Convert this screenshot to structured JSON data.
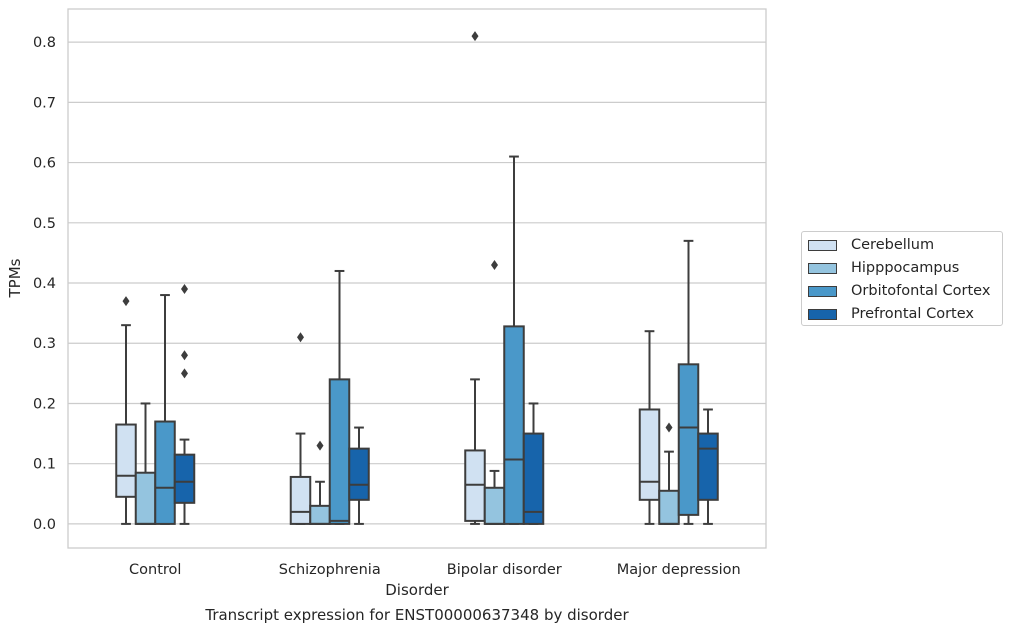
{
  "caption": "Transcript expression for ENST00000637348 by disorder",
  "chart_data": {
    "type": "boxplot",
    "xlabel": "Disorder",
    "ylabel": "TPMs",
    "ylim": [
      -0.04,
      0.855
    ],
    "yticks": [
      0.0,
      0.1,
      0.2,
      0.3,
      0.4,
      0.5,
      0.6,
      0.7,
      0.8
    ],
    "ytick_labels": [
      "0.0",
      "0.1",
      "0.2",
      "0.3",
      "0.4",
      "0.5",
      "0.6",
      "0.7",
      "0.8"
    ],
    "grid": "horizontal",
    "legend_position": "right",
    "categories": [
      "Control",
      "Schizophrenia",
      "Bipolar disorder",
      "Major depression"
    ],
    "series": [
      {
        "name": "Cerebellum",
        "color": "#d0e1f2",
        "boxes": [
          {
            "q1": 0.045,
            "median": 0.08,
            "q3": 0.165,
            "whisker_low": 0.0,
            "whisker_high": 0.33,
            "outliers": [
              0.37
            ]
          },
          {
            "q1": 0.0,
            "median": 0.02,
            "q3": 0.078,
            "whisker_low": 0.0,
            "whisker_high": 0.15,
            "outliers": [
              0.31
            ]
          },
          {
            "q1": 0.005,
            "median": 0.065,
            "q3": 0.122,
            "whisker_low": 0.0,
            "whisker_high": 0.24,
            "outliers": [
              0.81
            ]
          },
          {
            "q1": 0.04,
            "median": 0.07,
            "q3": 0.19,
            "whisker_low": 0.0,
            "whisker_high": 0.32,
            "outliers": []
          }
        ]
      },
      {
        "name": "Hipppocampus",
        "color": "#94c4df",
        "boxes": [
          {
            "q1": 0.0,
            "median": 0.0,
            "q3": 0.085,
            "whisker_low": 0.0,
            "whisker_high": 0.2,
            "outliers": []
          },
          {
            "q1": 0.0,
            "median": 0.0,
            "q3": 0.03,
            "whisker_low": 0.0,
            "whisker_high": 0.07,
            "outliers": [
              0.13
            ]
          },
          {
            "q1": 0.0,
            "median": 0.0,
            "q3": 0.06,
            "whisker_low": 0.0,
            "whisker_high": 0.088,
            "outliers": [
              0.43
            ]
          },
          {
            "q1": 0.0,
            "median": 0.0,
            "q3": 0.055,
            "whisker_low": 0.0,
            "whisker_high": 0.12,
            "outliers": [
              0.16
            ]
          }
        ]
      },
      {
        "name": "Orbitofontal Cortex",
        "color": "#4a98c9",
        "boxes": [
          {
            "q1": 0.0,
            "median": 0.06,
            "q3": 0.17,
            "whisker_low": 0.0,
            "whisker_high": 0.38,
            "outliers": []
          },
          {
            "q1": 0.0,
            "median": 0.005,
            "q3": 0.24,
            "whisker_low": 0.0,
            "whisker_high": 0.42,
            "outliers": []
          },
          {
            "q1": 0.0,
            "median": 0.107,
            "q3": 0.328,
            "whisker_low": 0.0,
            "whisker_high": 0.61,
            "outliers": []
          },
          {
            "q1": 0.015,
            "median": 0.16,
            "q3": 0.265,
            "whisker_low": 0.0,
            "whisker_high": 0.47,
            "outliers": []
          }
        ]
      },
      {
        "name": "Prefrontal Cortex",
        "color": "#1764ab",
        "boxes": [
          {
            "q1": 0.035,
            "median": 0.07,
            "q3": 0.115,
            "whisker_low": 0.0,
            "whisker_high": 0.14,
            "outliers": [
              0.25,
              0.28,
              0.39
            ]
          },
          {
            "q1": 0.04,
            "median": 0.065,
            "q3": 0.125,
            "whisker_low": 0.0,
            "whisker_high": 0.16,
            "outliers": []
          },
          {
            "q1": 0.0,
            "median": 0.02,
            "q3": 0.15,
            "whisker_low": 0.0,
            "whisker_high": 0.2,
            "outliers": []
          },
          {
            "q1": 0.04,
            "median": 0.125,
            "q3": 0.15,
            "whisker_low": 0.0,
            "whisker_high": 0.19,
            "outliers": []
          }
        ]
      }
    ]
  }
}
